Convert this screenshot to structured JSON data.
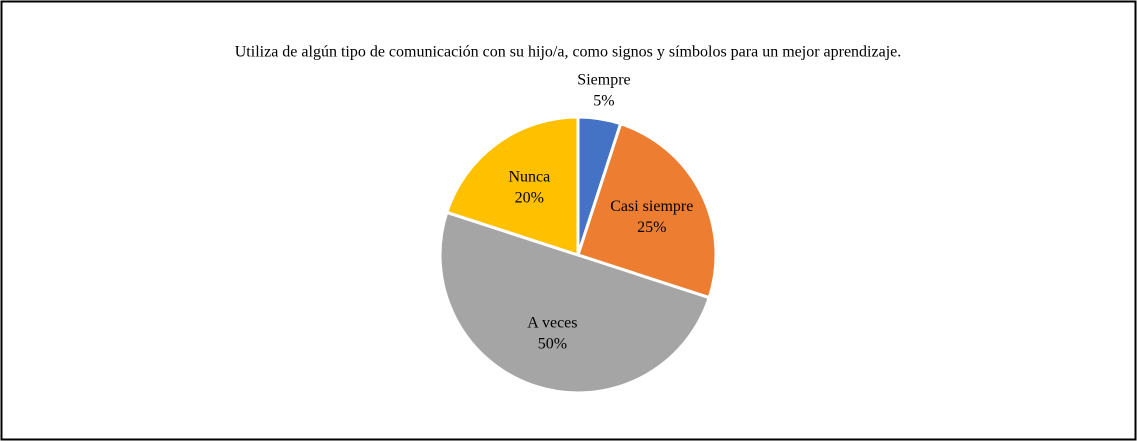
{
  "chart_data": {
    "type": "pie",
    "title": "Utiliza de algún tipo de comunicación con su hijo/a, como signos y símbolos para un mejor aprendizaje.",
    "categories": [
      "Siempre",
      "Casi siempre",
      "A veces",
      "Nunca"
    ],
    "values": [
      5,
      25,
      50,
      20
    ],
    "value_labels": [
      "5%",
      "25%",
      "50%",
      "20%"
    ],
    "colors": [
      "#4472c4",
      "#ed7d31",
      "#a5a5a5",
      "#ffc000"
    ]
  }
}
